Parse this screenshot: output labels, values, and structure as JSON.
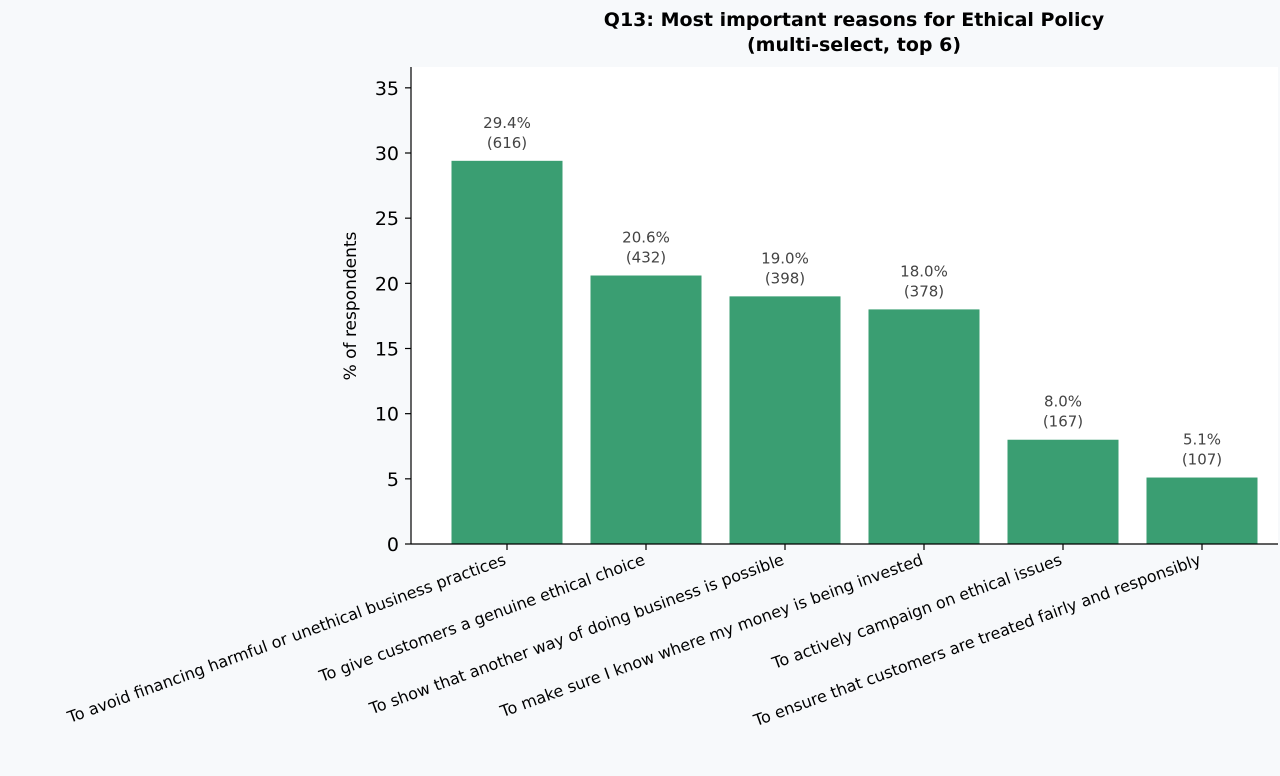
{
  "chart_data": {
    "type": "bar",
    "title": [
      "Q13: Most important reasons for Ethical Policy",
      "(multi-select, top 6)"
    ],
    "xlabel": "",
    "ylabel": "% of respondents",
    "ylim": [
      0,
      36.5
    ],
    "yticks": [
      0,
      5,
      10,
      15,
      20,
      25,
      30,
      35
    ],
    "grid": false,
    "bar_color": "#3a9e72",
    "categories": [
      "To avoid financing harmful or unethical business practices",
      "To give customers a genuine ethical choice",
      "To show that another way of doing business is possible",
      "To make sure I know where my money is being invested",
      "To actively campaign on ethical issues",
      "To ensure that customers are treated fairly and responsibly"
    ],
    "values": [
      29.4,
      20.6,
      19.0,
      18.0,
      8.0,
      5.1
    ],
    "percent_labels": [
      "29.4%",
      "20.6%",
      "19.0%",
      "18.0%",
      "8.0%",
      "5.1%"
    ],
    "count_labels": [
      "(616)",
      "(432)",
      "(398)",
      "(378)",
      "(167)",
      "(107)"
    ]
  }
}
